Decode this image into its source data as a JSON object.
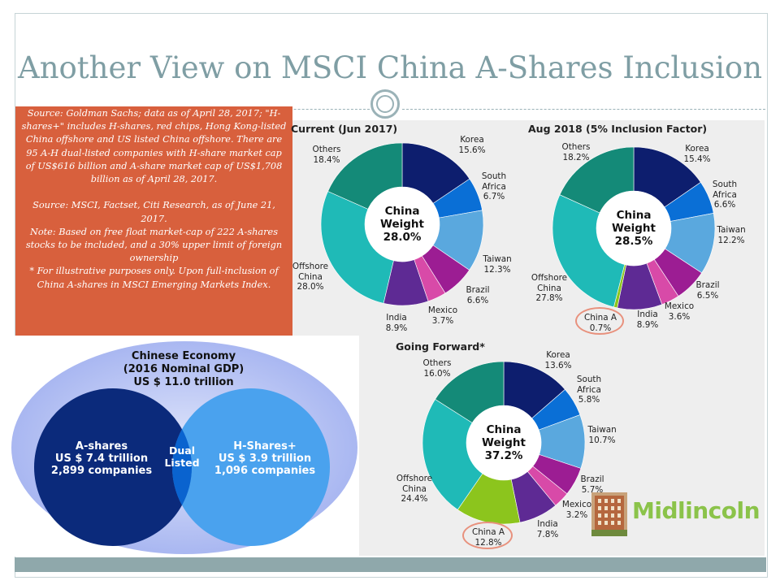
{
  "slide": {
    "title": "Another View on MSCI China A-Shares Inclusion",
    "notes": [
      "Source: Goldman Sachs; data as of April 28, 2017; \"H-shares+\" includes H-shares, red chips, Hong Kong-listed China offshore and US listed China offshore. There are 95 A-H dual-listed companies with H-share market cap of US$616 billion and A-share market cap of US$1,708 billion as of April 28, 2017.",
      "Source: MSCI, Factset, Citi Research, as of June 21, 2017.",
      "Note: Based on free float market-cap of 222 A-shares stocks to be included, and a 30% upper limit of foreign ownership",
      "* For illustrative purposes only. Upon full-inclusion of China A-shares in MSCI Emerging Markets Index."
    ],
    "logo_text": "Midlincoln",
    "colors": {
      "title": "#7f9ea4",
      "note_box": "#d8603d",
      "panel": "#eeeeee",
      "bar": "#8fa8ab",
      "logo": "#8bc34a"
    }
  },
  "venn": {
    "title_lines": [
      "Chinese Economy",
      "(2016 Nominal GDP)",
      "US $ 11.0 trillion"
    ],
    "left_lines": [
      "A-shares",
      "US $ 7.4 trillion",
      "2,899 companies"
    ],
    "right_lines": [
      "H-Shares+",
      "US $ 3.9 trillion",
      "1,096 companies"
    ],
    "overlap_lines": [
      "Dual",
      "Listed"
    ]
  },
  "chart_data": [
    {
      "type": "pie",
      "title": "Current (Jun 2017)",
      "center_lines": [
        "China",
        "Weight",
        "28.0%"
      ],
      "labels": [
        "Korea",
        "South Africa",
        "Taiwan",
        "Brazil",
        "Mexico",
        "India",
        "Offshore China",
        "Others"
      ],
      "value_labels": [
        "15.6%",
        "6.7%",
        "12.3%",
        "6.6%",
        "3.7%",
        "8.9%",
        "28.0%",
        "18.4%"
      ],
      "values": [
        15.6,
        6.7,
        12.3,
        6.6,
        3.7,
        8.9,
        28.0,
        18.4
      ],
      "colors": [
        "#0d1e6e",
        "#0a6fd6",
        "#5aa8de",
        "#9c1d93",
        "#d84aa8",
        "#5e2a94",
        "#1fbab7",
        "#148a78"
      ]
    },
    {
      "type": "pie",
      "title": "Aug 2018 (5% Inclusion Factor)",
      "center_lines": [
        "China",
        "Weight",
        "28.5%"
      ],
      "labels": [
        "Korea",
        "South Africa",
        "Taiwan",
        "Brazil",
        "Mexico",
        "India",
        "China A",
        "Offshore China",
        "Others"
      ],
      "value_labels": [
        "15.4%",
        "6.6%",
        "12.2%",
        "6.5%",
        "3.6%",
        "8.9%",
        "0.7%",
        "27.8%",
        "18.2%"
      ],
      "values": [
        15.4,
        6.6,
        12.2,
        6.5,
        3.6,
        8.9,
        0.7,
        27.8,
        18.2
      ],
      "colors": [
        "#0d1e6e",
        "#0a6fd6",
        "#5aa8de",
        "#9c1d93",
        "#d84aa8",
        "#5e2a94",
        "#8cc51d",
        "#1fbab7",
        "#148a78"
      ]
    },
    {
      "type": "pie",
      "title": "Going Forward*",
      "center_lines": [
        "China",
        "Weight",
        "37.2%"
      ],
      "labels": [
        "Korea",
        "South Africa",
        "Taiwan",
        "Brazil",
        "Mexico",
        "India",
        "China A",
        "Offshore China",
        "Others"
      ],
      "value_labels": [
        "13.6%",
        "5.8%",
        "10.7%",
        "5.7%",
        "3.2%",
        "7.8%",
        "12.8%",
        "24.4%",
        "16.0%"
      ],
      "values": [
        13.6,
        5.8,
        10.7,
        5.7,
        3.2,
        7.8,
        12.8,
        24.4,
        16.0
      ],
      "colors": [
        "#0d1e6e",
        "#0a6fd6",
        "#5aa8de",
        "#9c1d93",
        "#d84aa8",
        "#5e2a94",
        "#8cc51d",
        "#1fbab7",
        "#148a78"
      ]
    }
  ]
}
